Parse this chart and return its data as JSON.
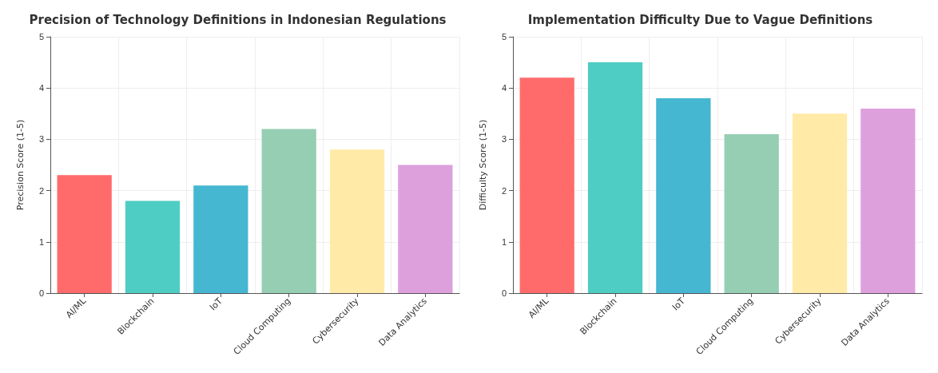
{
  "chart_data": [
    {
      "type": "bar",
      "title": "Precision of Technology Definitions in Indonesian Regulations",
      "ylabel": "Precision Score (1-5)",
      "categories": [
        "AI/ML",
        "Blockchain",
        "IoT",
        "Cloud Computing",
        "Cybersecurity",
        "Data Analytics"
      ],
      "values": [
        2.3,
        1.8,
        2.1,
        3.2,
        2.8,
        2.5
      ],
      "colors": [
        "#ff6b6b",
        "#4ecdc4",
        "#45b7d1",
        "#96ceb4",
        "#ffeaa7",
        "#dda0dd"
      ],
      "ylim": [
        0,
        5
      ],
      "yticks": [
        0,
        1,
        2,
        3,
        4,
        5
      ],
      "grid": true
    },
    {
      "type": "bar",
      "title": "Implementation Difficulty Due to Vague Definitions",
      "ylabel": "Difficulty Score (1-5)",
      "categories": [
        "AI/ML",
        "Blockchain",
        "IoT",
        "Cloud Computing",
        "Cybersecurity",
        "Data Analytics"
      ],
      "values": [
        4.2,
        4.5,
        3.8,
        3.1,
        3.5,
        3.6
      ],
      "colors": [
        "#ff6b6b",
        "#4ecdc4",
        "#45b7d1",
        "#96ceb4",
        "#ffeaa7",
        "#dda0dd"
      ],
      "ylim": [
        0,
        5
      ],
      "yticks": [
        0,
        1,
        2,
        3,
        4,
        5
      ],
      "grid": true
    }
  ]
}
